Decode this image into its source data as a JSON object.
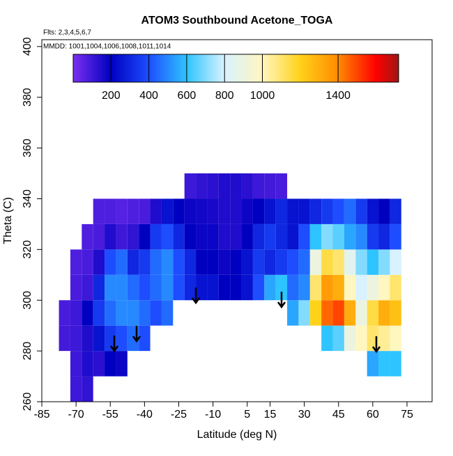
{
  "chart_data": {
    "type": "heatmap",
    "title": "ATOM3 Southbound Acetone_TOGA",
    "subtitle": "Flts: 2,3,4,5,6,7",
    "annotation": "MMDD: 1001,1004,1006,1008,1011,1014",
    "x_label": "Latitude (deg N)",
    "y_label": "Theta (C)",
    "xlim": [
      -85,
      86
    ],
    "ylim": [
      260,
      402.7
    ],
    "xticks": [
      -85,
      -70,
      -55,
      -40,
      -25,
      -10,
      5,
      15,
      30,
      45,
      60,
      75
    ],
    "yticks": [
      260,
      280,
      300,
      320,
      340,
      360,
      380,
      400
    ],
    "x": [
      -75,
      -70,
      -65,
      -60,
      -55,
      -50,
      -45,
      -40,
      -35,
      -30,
      -25,
      -20,
      -15,
      -10,
      -5,
      0,
      5,
      10,
      15,
      20,
      25,
      30,
      35,
      40,
      45,
      50,
      55,
      60,
      65,
      70
    ],
    "y": [
      265,
      275,
      285,
      295,
      305,
      315,
      325,
      335,
      345
    ],
    "z": [
      [
        null,
        100,
        120,
        null,
        null,
        null,
        null,
        null,
        null,
        null,
        null,
        null,
        null,
        null,
        null,
        null,
        null,
        null,
        null,
        null,
        null,
        null,
        null,
        null,
        null,
        null,
        null,
        null,
        null,
        null
      ],
      [
        null,
        100,
        150,
        130,
        200,
        180,
        null,
        null,
        null,
        null,
        null,
        null,
        null,
        null,
        null,
        null,
        null,
        null,
        null,
        null,
        null,
        null,
        null,
        null,
        null,
        null,
        null,
        550,
        600,
        600
      ],
      [
        90,
        100,
        150,
        250,
        350,
        400,
        450,
        400,
        null,
        null,
        null,
        null,
        null,
        null,
        null,
        null,
        null,
        null,
        null,
        null,
        null,
        null,
        null,
        600,
        650,
        900,
        1000,
        1100,
        1050,
        1000
      ],
      [
        80,
        100,
        200,
        350,
        450,
        500,
        500,
        450,
        400,
        450,
        null,
        null,
        null,
        null,
        null,
        null,
        null,
        null,
        null,
        null,
        550,
        700,
        1200,
        1450,
        1500,
        1300,
        900,
        1150,
        1300,
        1250
      ],
      [
        null,
        80,
        100,
        300,
        500,
        500,
        450,
        400,
        450,
        500,
        400,
        300,
        250,
        250,
        200,
        200,
        250,
        400,
        550,
        600,
        450,
        500,
        1100,
        1350,
        1300,
        1000,
        800,
        900,
        1000,
        1100
      ],
      [
        null,
        70,
        80,
        150,
        400,
        450,
        300,
        350,
        450,
        500,
        400,
        300,
        200,
        200,
        180,
        200,
        250,
        350,
        300,
        350,
        400,
        450,
        900,
        1150,
        1100,
        850,
        700,
        600,
        700,
        800
      ],
      [
        null,
        null,
        70,
        80,
        150,
        100,
        120,
        200,
        350,
        400,
        300,
        200,
        180,
        180,
        150,
        150,
        200,
        300,
        350,
        300,
        250,
        400,
        600,
        700,
        650,
        550,
        500,
        350,
        300,
        400
      ],
      [
        null,
        null,
        null,
        70,
        70,
        60,
        70,
        80,
        150,
        250,
        200,
        180,
        170,
        160,
        150,
        150,
        180,
        200,
        250,
        300,
        250,
        250,
        300,
        350,
        400,
        450,
        350,
        250,
        200,
        300
      ],
      [
        null,
        null,
        null,
        null,
        null,
        null,
        null,
        null,
        null,
        null,
        null,
        100,
        120,
        130,
        150,
        150,
        130,
        100,
        90,
        80,
        null,
        null,
        null,
        null,
        null,
        null,
        null,
        null,
        null,
        null
      ]
    ],
    "colorbar_lim": [
      0,
      1720
    ],
    "colorbar_ticks": [
      200,
      400,
      600,
      800,
      1000,
      1400
    ],
    "colorscale": [
      [
        0,
        "#7a2ff0"
      ],
      [
        200,
        "#0000c0"
      ],
      [
        400,
        "#1d4dff"
      ],
      [
        600,
        "#2ec4ff"
      ],
      [
        800,
        "#d8f2ff"
      ],
      [
        1000,
        "#fff6c0"
      ],
      [
        1200,
        "#ffd21a"
      ],
      [
        1400,
        "#ff8a00"
      ],
      [
        1600,
        "#ff0000"
      ],
      [
        1720,
        "#a01515"
      ]
    ]
  }
}
